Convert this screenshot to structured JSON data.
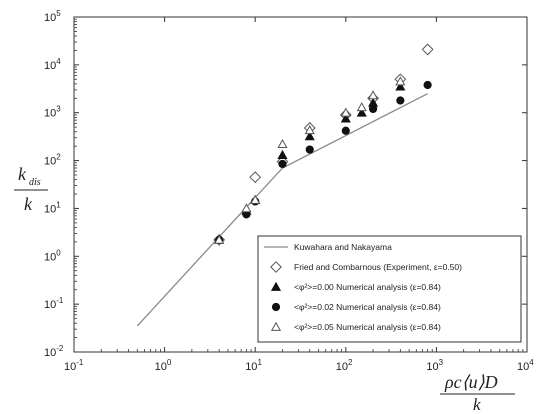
{
  "chart_data": {
    "type": "scatter",
    "x_scale": "log",
    "y_scale": "log",
    "xlim": [
      0.1,
      10000
    ],
    "ylim": [
      0.01,
      100000
    ],
    "x_ticks": [
      {
        "value": 0.1,
        "base": "10",
        "exp": "-1"
      },
      {
        "value": 1,
        "base": "10",
        "exp": "0"
      },
      {
        "value": 10,
        "base": "10",
        "exp": "1"
      },
      {
        "value": 100,
        "base": "10",
        "exp": "2"
      },
      {
        "value": 1000,
        "base": "10",
        "exp": "3"
      },
      {
        "value": 10000,
        "base": "10",
        "exp": "4"
      }
    ],
    "y_ticks": [
      {
        "value": 0.01,
        "base": "10",
        "exp": "-2"
      },
      {
        "value": 0.1,
        "base": "10",
        "exp": "-1"
      },
      {
        "value": 1,
        "base": "10",
        "exp": "0"
      },
      {
        "value": 10,
        "base": "10",
        "exp": "1"
      },
      {
        "value": 100,
        "base": "10",
        "exp": "2"
      },
      {
        "value": 1000,
        "base": "10",
        "exp": "3"
      },
      {
        "value": 10000,
        "base": "10",
        "exp": "4"
      },
      {
        "value": 100000,
        "base": "10",
        "exp": "5"
      }
    ],
    "ylabel": {
      "main": "k",
      "sub": "dis",
      "denominator": "k"
    },
    "xlabel": {
      "text": "ρc⟨u⟩D",
      "denominator": "k"
    },
    "legend_position": "bottom-right",
    "series": [
      {
        "kind": "line",
        "color": "#8a8a8a",
        "label": "Kuwahara and Nakayama",
        "x": [
          0.5,
          20,
          800
        ],
        "y": [
          0.035,
          70,
          2500
        ]
      },
      {
        "kind": "open-diamond",
        "color": "#555555",
        "label": "Fried and Combarnous (Experiment, ε=0.50)",
        "x": [
          4,
          10,
          20,
          40,
          100,
          200,
          400,
          800
        ],
        "y": [
          2.2,
          45,
          95,
          480,
          900,
          2000,
          5000,
          21000
        ]
      },
      {
        "kind": "filled-triangle",
        "color": "#111111",
        "label": "<φ²>=0.00  Numerical analysis (ε=0.84)",
        "x": [
          4,
          8,
          10,
          20,
          40,
          100,
          150,
          200,
          400
        ],
        "y": [
          2.2,
          9,
          15,
          130,
          320,
          750,
          1000,
          1600,
          3500
        ]
      },
      {
        "kind": "filled-circle",
        "color": "#111111",
        "label": "<φ²>=0.02  Numerical analysis (ε=0.84)",
        "x": [
          4,
          8,
          10,
          20,
          40,
          100,
          200,
          400,
          800
        ],
        "y": [
          2.2,
          7.5,
          14,
          85,
          170,
          420,
          1200,
          1800,
          3800
        ]
      },
      {
        "kind": "open-triangle",
        "color": "#555555",
        "label": "<φ²>=0.05  Numerical analysis (ε=0.84)",
        "x": [
          4,
          8,
          10,
          20,
          40,
          100,
          150,
          200,
          400
        ],
        "y": [
          2.2,
          10,
          15,
          220,
          430,
          1000,
          1300,
          2300,
          4500
        ]
      }
    ]
  }
}
